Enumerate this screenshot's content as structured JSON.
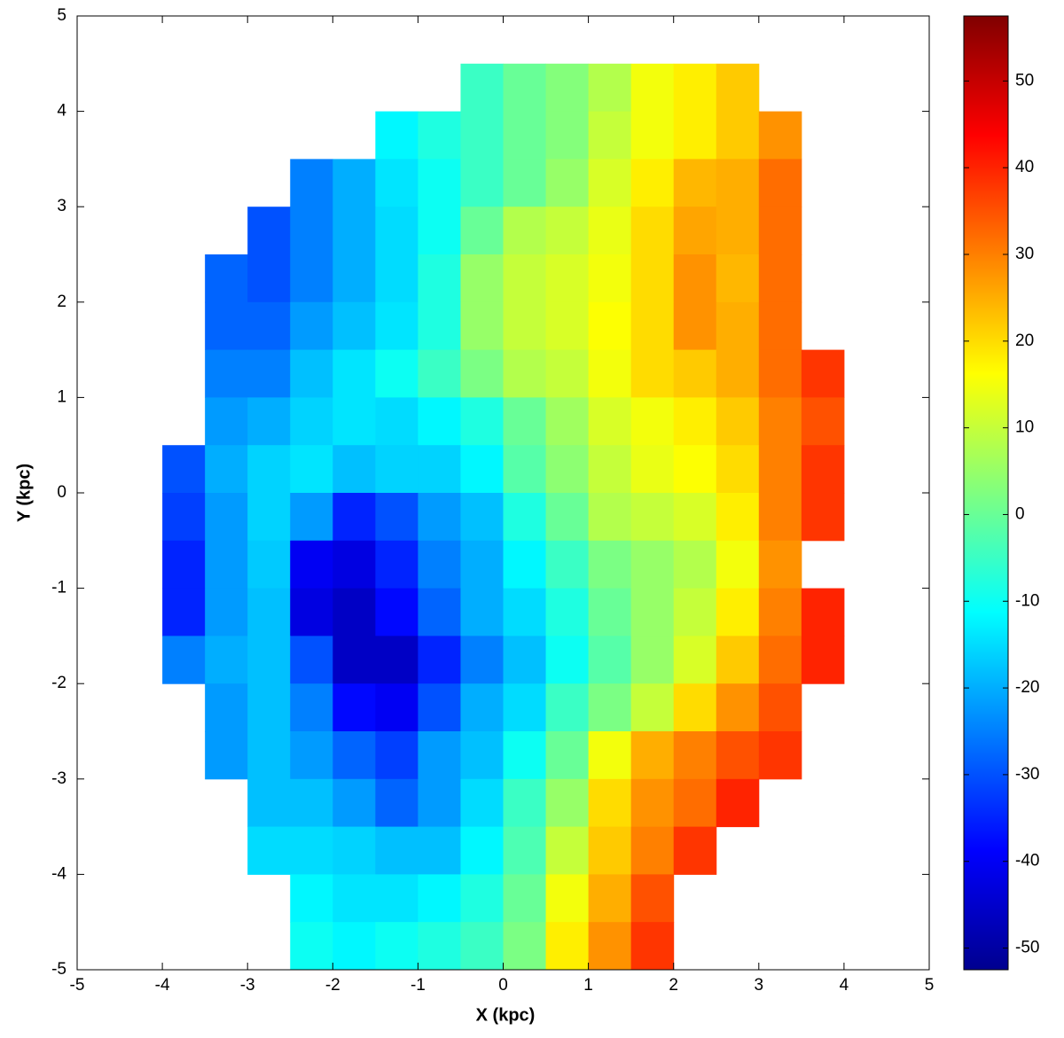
{
  "chart_data": {
    "type": "heatmap",
    "xlabel": "X (kpc)",
    "ylabel": "Y (kpc)",
    "colormap": "jet",
    "x": [
      -3.75,
      -3.25,
      -2.75,
      -2.25,
      -1.75,
      -1.25,
      -0.75,
      -0.25,
      0.25,
      0.75,
      1.25,
      1.75,
      2.25,
      2.75,
      3.25,
      3.75
    ],
    "y": [
      4.25,
      3.75,
      3.25,
      2.75,
      2.25,
      1.75,
      1.25,
      0.75,
      0.25,
      -0.25,
      -0.75,
      -1.25,
      -1.75,
      -2.25,
      -2.75,
      -3.25,
      -3.75,
      -4.25,
      -4.75
    ],
    "values": [
      [
        null,
        null,
        null,
        null,
        null,
        null,
        null,
        -5,
        0,
        3,
        8,
        15,
        18,
        22,
        null,
        null
      ],
      [
        null,
        null,
        null,
        null,
        null,
        -12,
        -8,
        -5,
        0,
        3,
        10,
        15,
        18,
        22,
        28,
        null
      ],
      [
        null,
        null,
        null,
        -25,
        -20,
        -14,
        -10,
        -5,
        0,
        5,
        12,
        18,
        24,
        25,
        32,
        null
      ],
      [
        null,
        null,
        -30,
        -25,
        -20,
        -15,
        -10,
        0,
        8,
        10,
        14,
        20,
        26,
        25,
        32,
        null
      ],
      [
        null,
        -28,
        -30,
        -25,
        -20,
        -15,
        -8,
        5,
        10,
        12,
        15,
        20,
        28,
        24,
        32,
        null
      ],
      [
        null,
        -28,
        -28,
        -22,
        -18,
        -14,
        -8,
        5,
        10,
        12,
        16,
        20,
        28,
        25,
        32,
        null
      ],
      [
        null,
        -25,
        -25,
        -18,
        -14,
        -10,
        -5,
        2,
        8,
        10,
        15,
        20,
        22,
        25,
        32,
        38
      ],
      [
        null,
        -22,
        -20,
        -16,
        -14,
        -15,
        -12,
        -8,
        0,
        6,
        12,
        15,
        18,
        22,
        30,
        35
      ],
      [
        -30,
        -20,
        -16,
        -14,
        -18,
        -16,
        -16,
        -12,
        -2,
        4,
        10,
        14,
        16,
        20,
        30,
        38
      ],
      [
        -32,
        -22,
        -16,
        -22,
        -35,
        -30,
        -22,
        -18,
        -8,
        0,
        8,
        10,
        12,
        18,
        30,
        38
      ],
      [
        -35,
        -22,
        -17,
        -40,
        -42,
        -35,
        -25,
        -20,
        -12,
        -5,
        2,
        5,
        8,
        15,
        28,
        null
      ],
      [
        -35,
        -22,
        -18,
        -42,
        -45,
        -38,
        -28,
        -20,
        -15,
        -8,
        0,
        5,
        10,
        18,
        30,
        40
      ],
      [
        -25,
        -20,
        -18,
        -30,
        -45,
        -45,
        -35,
        -25,
        -18,
        -10,
        -2,
        5,
        12,
        22,
        32,
        40
      ],
      [
        null,
        -22,
        -18,
        -25,
        -38,
        -40,
        -30,
        -20,
        -15,
        -5,
        2,
        10,
        20,
        28,
        35,
        null
      ],
      [
        null,
        -22,
        -18,
        -22,
        -28,
        -32,
        -22,
        -18,
        -10,
        0,
        15,
        25,
        30,
        35,
        38,
        null
      ],
      [
        null,
        null,
        -18,
        -18,
        -22,
        -28,
        -22,
        -15,
        -5,
        5,
        20,
        28,
        32,
        40,
        null,
        null
      ],
      [
        null,
        null,
        -15,
        -15,
        -16,
        -18,
        -18,
        -12,
        -3,
        10,
        22,
        30,
        38,
        null,
        null,
        null
      ],
      [
        null,
        null,
        null,
        -12,
        -14,
        -14,
        -12,
        -8,
        0,
        15,
        25,
        35,
        null,
        null,
        null,
        null
      ],
      [
        null,
        null,
        null,
        -10,
        -12,
        -10,
        -8,
        -5,
        2,
        18,
        28,
        38,
        null,
        null,
        null,
        null
      ]
    ],
    "cell": 0.5,
    "xlim": [
      -5,
      5
    ],
    "ylim": [
      -5,
      5
    ],
    "xticks": [
      -5,
      -4,
      -3,
      -2,
      -1,
      0,
      1,
      2,
      3,
      4,
      5
    ],
    "yticks": [
      -5,
      -4,
      -3,
      -2,
      -1,
      0,
      1,
      2,
      3,
      4,
      5
    ],
    "clim": [
      -52.5,
      57.5
    ],
    "cticks": [
      -50,
      -40,
      -30,
      -20,
      -10,
      0,
      10,
      20,
      30,
      40,
      50
    ]
  }
}
